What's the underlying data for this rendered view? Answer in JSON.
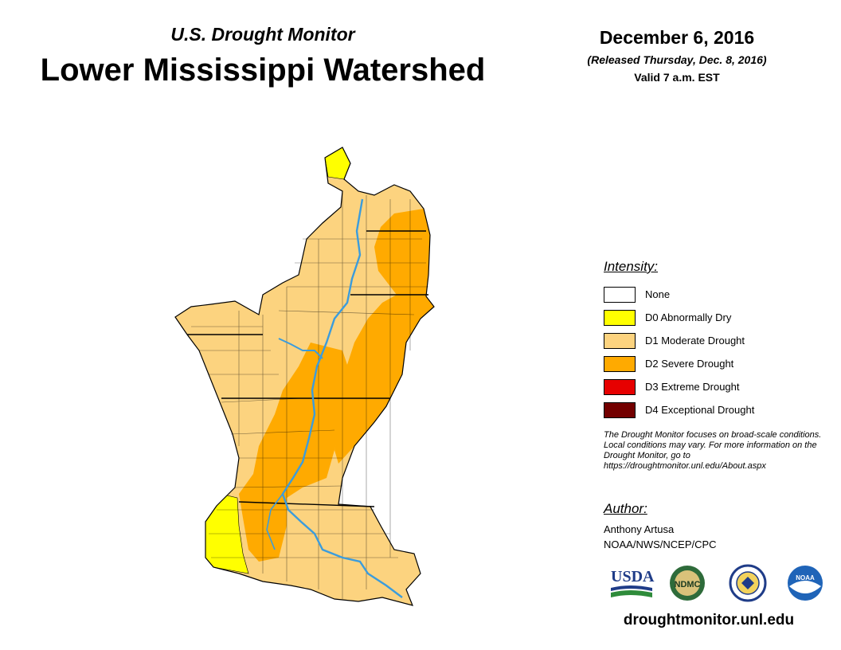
{
  "header": {
    "subtitle": "U.S. Drought Monitor",
    "title": "Lower Mississippi Watershed",
    "date": "December 6, 2016",
    "released": "(Released Thursday, Dec. 8, 2016)",
    "valid": "Valid 7 a.m. EST"
  },
  "legend": {
    "heading": "Intensity:",
    "items": [
      {
        "label": "None",
        "color": "#ffffff"
      },
      {
        "label": "D0 Abnormally Dry",
        "color": "#ffff00"
      },
      {
        "label": "D1 Moderate Drought",
        "color": "#fcd37f"
      },
      {
        "label": "D2 Severe Drought",
        "color": "#ffaa00"
      },
      {
        "label": "D3 Extreme Drought",
        "color": "#e60000"
      },
      {
        "label": "D4 Exceptional Drought",
        "color": "#730000"
      }
    ]
  },
  "disclaimer": "The Drought Monitor focuses on broad-scale conditions. Local conditions may vary. For more information on the Drought Monitor, go to https://droughtmonitor.unl.edu/About.aspx",
  "author": {
    "heading": "Author:",
    "name": "Anthony Artusa",
    "org": "NOAA/NWS/NCEP/CPC"
  },
  "logos": {
    "usda": "USDA",
    "ndmc": "NDMC",
    "doc": "doc-seal",
    "noaa": "NOAA"
  },
  "footer_url": "droughtmonitor.unl.edu",
  "map_colors": {
    "d0": "#ffff00",
    "d1": "#fcd37f",
    "d2": "#ffaa00",
    "river": "#3b9cdc",
    "border": "#000000"
  }
}
